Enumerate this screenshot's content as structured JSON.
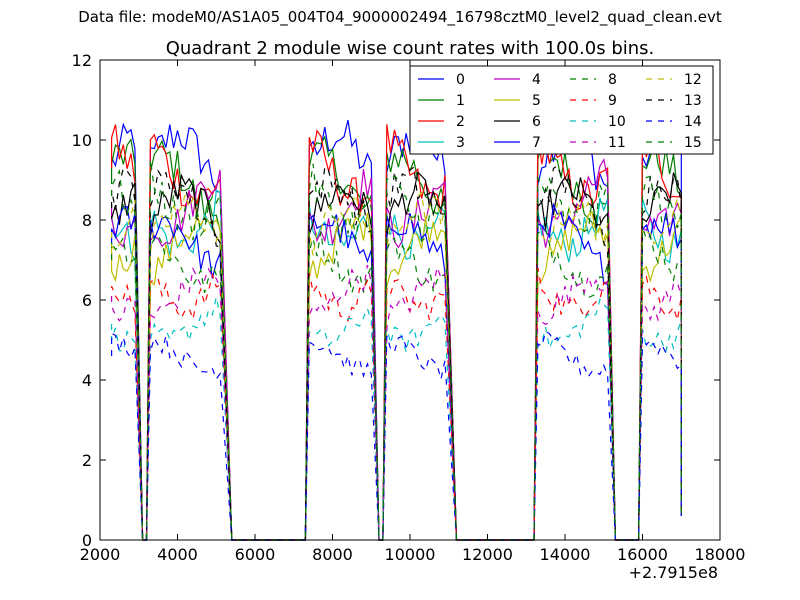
{
  "figure": {
    "suptitle": "Data file: modeM0/AS1A05_004T04_9000002494_16798cztM0_level2_quad_clean.evt"
  },
  "chart_data": {
    "type": "line",
    "title": "Quadrant 2 module wise count rates with 100.0s bins.",
    "xlabel": "",
    "ylabel": "",
    "x_offset_label": "+2.7915e8",
    "xlim": [
      2000,
      18000
    ],
    "ylim": [
      0,
      12
    ],
    "xticks": [
      2000,
      4000,
      6000,
      8000,
      10000,
      12000,
      14000,
      16000,
      18000
    ],
    "xtick_labels": [
      "2000",
      "4000",
      "6000",
      "8000",
      "10000",
      "12000",
      "14000",
      "16000",
      "18000"
    ],
    "yticks": [
      0,
      2,
      4,
      6,
      8,
      10,
      12
    ],
    "ytick_labels": [
      "0",
      "2",
      "4",
      "6",
      "8",
      "10",
      "12"
    ],
    "grid": false,
    "legend_position": "top-right",
    "legend_columns": 4,
    "segments": [
      {
        "start": 2300,
        "end": 2900,
        "zero_after": 3100
      },
      {
        "start": 3300,
        "end": 5100,
        "zero_after": 5400
      },
      {
        "start": 7400,
        "end": 9000,
        "zero_after": 9200
      },
      {
        "start": 9400,
        "end": 10900,
        "zero_after": 11200
      },
      {
        "start": 13300,
        "end": 15100,
        "zero_after": 15300
      },
      {
        "start": 16000,
        "end": 17000,
        "zero_after": 17000
      }
    ],
    "series": [
      {
        "name": "0",
        "color": "#0000ff",
        "style": "solid",
        "level": 9.4
      },
      {
        "name": "1",
        "color": "#007f00",
        "style": "solid",
        "level": 8.9
      },
      {
        "name": "2",
        "color": "#ff0000",
        "style": "solid",
        "level": 9.3
      },
      {
        "name": "3",
        "color": "#00bfbf",
        "style": "solid",
        "level": 8.0
      },
      {
        "name": "4",
        "color": "#bf00bf",
        "style": "solid",
        "level": 8.4
      },
      {
        "name": "5",
        "color": "#bfbf00",
        "style": "solid",
        "level": 7.3
      },
      {
        "name": "6",
        "color": "#000000",
        "style": "solid",
        "level": 8.1
      },
      {
        "name": "7",
        "color": "#0000ff",
        "style": "solid",
        "level": 7.4
      },
      {
        "name": "8",
        "color": "#007f00",
        "style": "dashed",
        "level": 7.0
      },
      {
        "name": "9",
        "color": "#ff0000",
        "style": "dashed",
        "level": 6.3
      },
      {
        "name": "10",
        "color": "#00bfbf",
        "style": "dashed",
        "level": 5.4
      },
      {
        "name": "11",
        "color": "#bf00bf",
        "style": "dashed",
        "level": 6.1
      },
      {
        "name": "12",
        "color": "#bfbf00",
        "style": "dashed",
        "level": 7.7
      },
      {
        "name": "13",
        "color": "#000000",
        "style": "dashed",
        "level": 8.3
      },
      {
        "name": "14",
        "color": "#0000ff",
        "style": "dashed",
        "level": 4.6
      },
      {
        "name": "15",
        "color": "#007f00",
        "style": "dashed",
        "level": 8.6
      }
    ]
  }
}
